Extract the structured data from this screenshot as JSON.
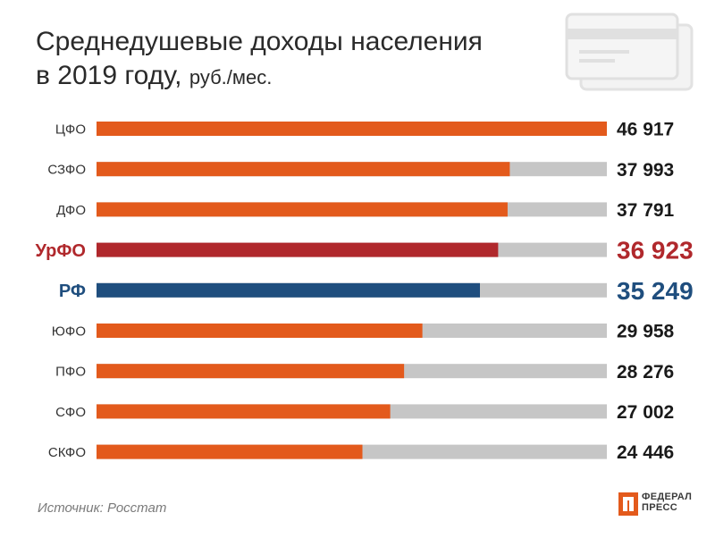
{
  "chart_data": {
    "type": "bar",
    "orientation": "horizontal",
    "title": "Среднедушевые доходы населения в 2019 году,",
    "title_line1": "Среднедушевые доходы населения",
    "title_line2": "в 2019 году,",
    "unit": "руб./мес.",
    "categories": [
      "ЦФО",
      "СЗФО",
      "ДФО",
      "УрФО",
      "РФ",
      "ЮФО",
      "ПФО",
      "СФО",
      "СКФО"
    ],
    "values": [
      46917,
      37993,
      37791,
      36923,
      35249,
      29958,
      28276,
      27002,
      24446
    ],
    "value_labels": [
      "46 917",
      "37 993",
      "37 791",
      "36 923",
      "35 249",
      "29 958",
      "28 276",
      "27 002",
      "24 446"
    ],
    "highlighted": [
      "УрФО",
      "РФ"
    ],
    "xlim": [
      0,
      46917
    ],
    "grid": false,
    "legend": "none"
  },
  "colors": {
    "default_bar": "#E35A1C",
    "background_track": "#C6C6C6",
    "urfo": "#B0282C",
    "rf": "#1F4E7E",
    "label_default": "#333333",
    "value_default": "#1a1a1a"
  },
  "source": "Источник: Росстат",
  "logo": {
    "line1": "ФЕДЕРАЛ",
    "line2": "ПРЕСС",
    "icon": "federalpress-logo-icon"
  },
  "decor": {
    "icon": "credit-card-icon"
  }
}
